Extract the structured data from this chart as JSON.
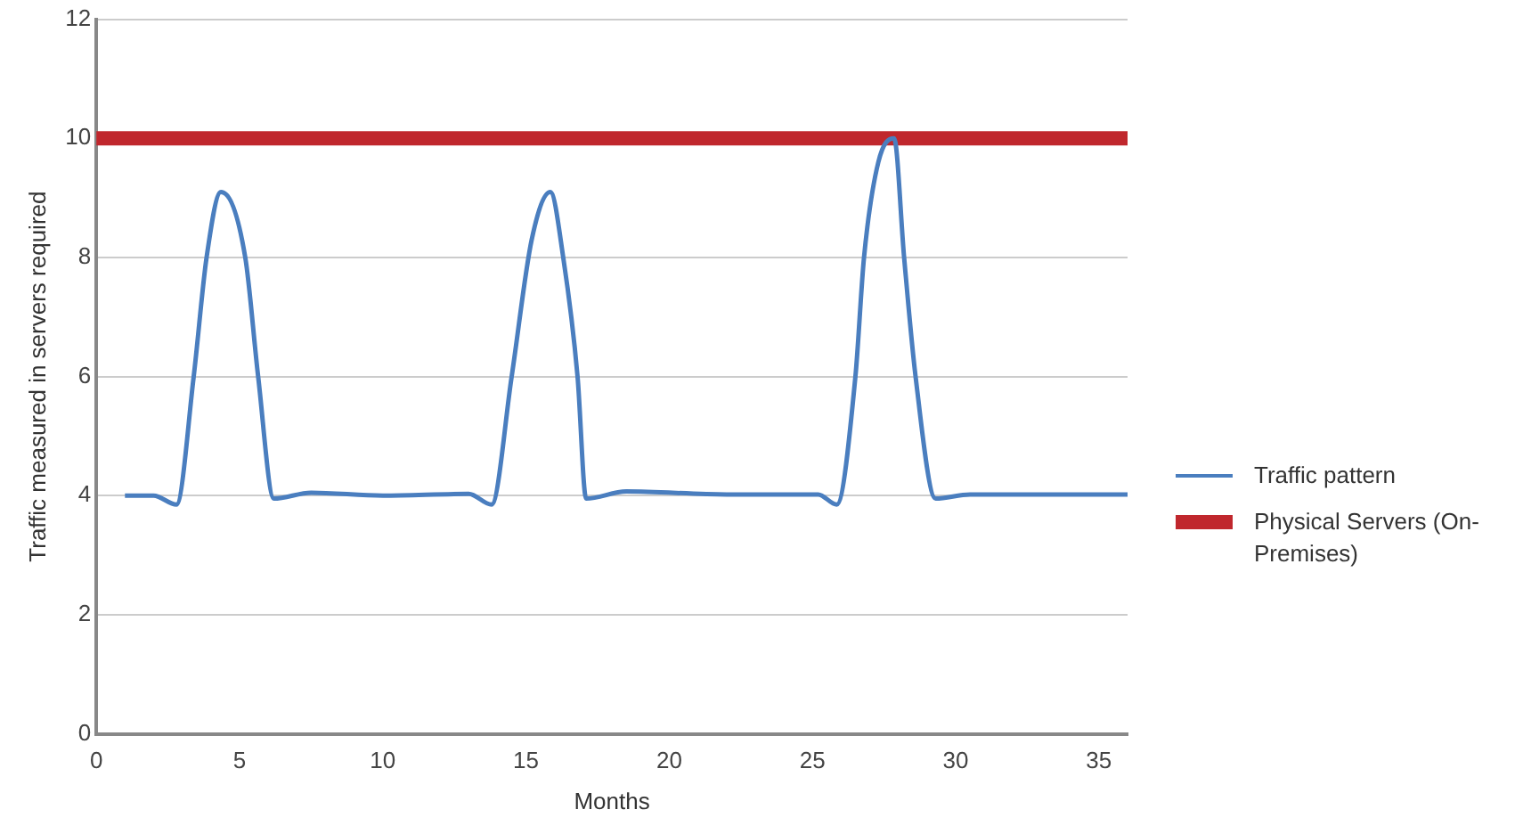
{
  "chart_data": {
    "type": "line",
    "xlabel": "Months",
    "ylabel": "Traffic measured in servers required",
    "xlim": [
      0,
      36
    ],
    "xticks": [
      0,
      5,
      10,
      15,
      20,
      25,
      30,
      35
    ],
    "ylim": [
      0,
      12
    ],
    "yticks": [
      0,
      2,
      4,
      6,
      8,
      10,
      12
    ],
    "grid": "y",
    "legend": "right",
    "marker": "none",
    "series": [
      {
        "name": "Traffic pattern",
        "color": "#4a7ebf",
        "x": [
          1,
          2,
          2.8,
          3.4,
          3.85,
          4.35,
          5.2,
          5.65,
          6.2,
          7.5,
          10,
          13,
          13.8,
          14.5,
          15.2,
          15.85,
          16.3,
          16.8,
          17.1,
          18.5,
          22,
          25.2,
          25.85,
          26.5,
          26.8,
          27.3,
          27.85,
          28.2,
          28.6,
          29.3,
          30.5,
          36
        ],
        "values": [
          4,
          4,
          3.85,
          6,
          8,
          9.1,
          8,
          6,
          3.95,
          4.05,
          4,
          4.03,
          3.85,
          6,
          8.3,
          9.1,
          8,
          6,
          3.95,
          4.07,
          4.02,
          4.02,
          3.85,
          6,
          8,
          9.6,
          10,
          8,
          6,
          3.95,
          4.02,
          4.02
        ]
      },
      {
        "name": "Physical Servers (On-Premises)",
        "color": "#c0272d",
        "x": [
          0,
          36
        ],
        "values": [
          10,
          10
        ]
      }
    ]
  }
}
